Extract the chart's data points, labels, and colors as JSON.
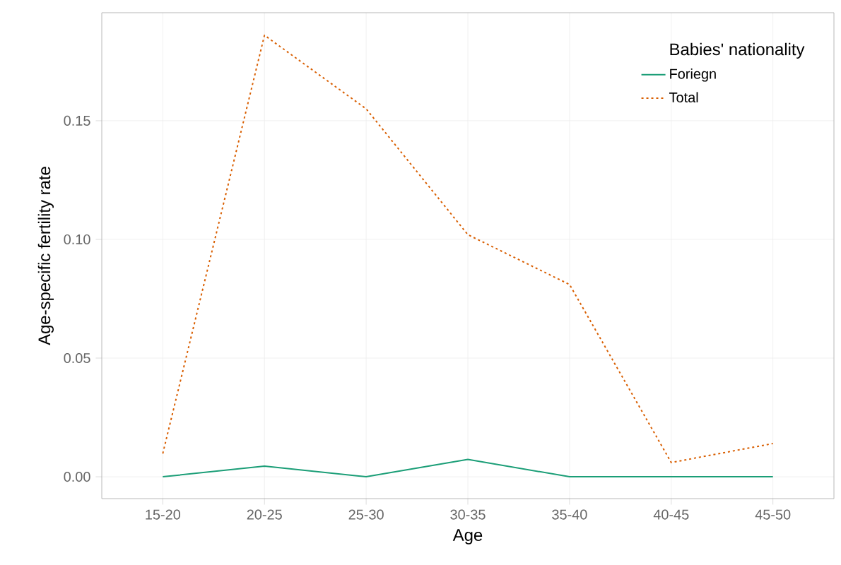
{
  "chart_data": {
    "type": "line",
    "xlabel": "Age",
    "ylabel": "Age-specific fertility rate",
    "legend_title": "Babies' nationality",
    "categories": [
      "15-20",
      "20-25",
      "25-30",
      "30-35",
      "35-40",
      "40-45",
      "45-50"
    ],
    "series": [
      {
        "name": "Foriegn",
        "color": "#1b9e77",
        "line_style": "solid",
        "values": [
          0,
          0.0045,
          0,
          0.0073,
          0,
          0,
          0
        ]
      },
      {
        "name": "Total",
        "color": "#d95f02",
        "line_style": "dotted",
        "values": [
          0.0098,
          0.186,
          0.155,
          0.102,
          0.081,
          0.006,
          0.014
        ]
      }
    ],
    "ylim": [
      -0.0092,
      0.1955
    ],
    "yticks": [
      {
        "value": 0,
        "label": "0.00"
      },
      0.05,
      {
        "value": 0.1,
        "label": "0.10"
      },
      0.15
    ],
    "grid": true,
    "legend": "top right",
    "marker": "none"
  }
}
